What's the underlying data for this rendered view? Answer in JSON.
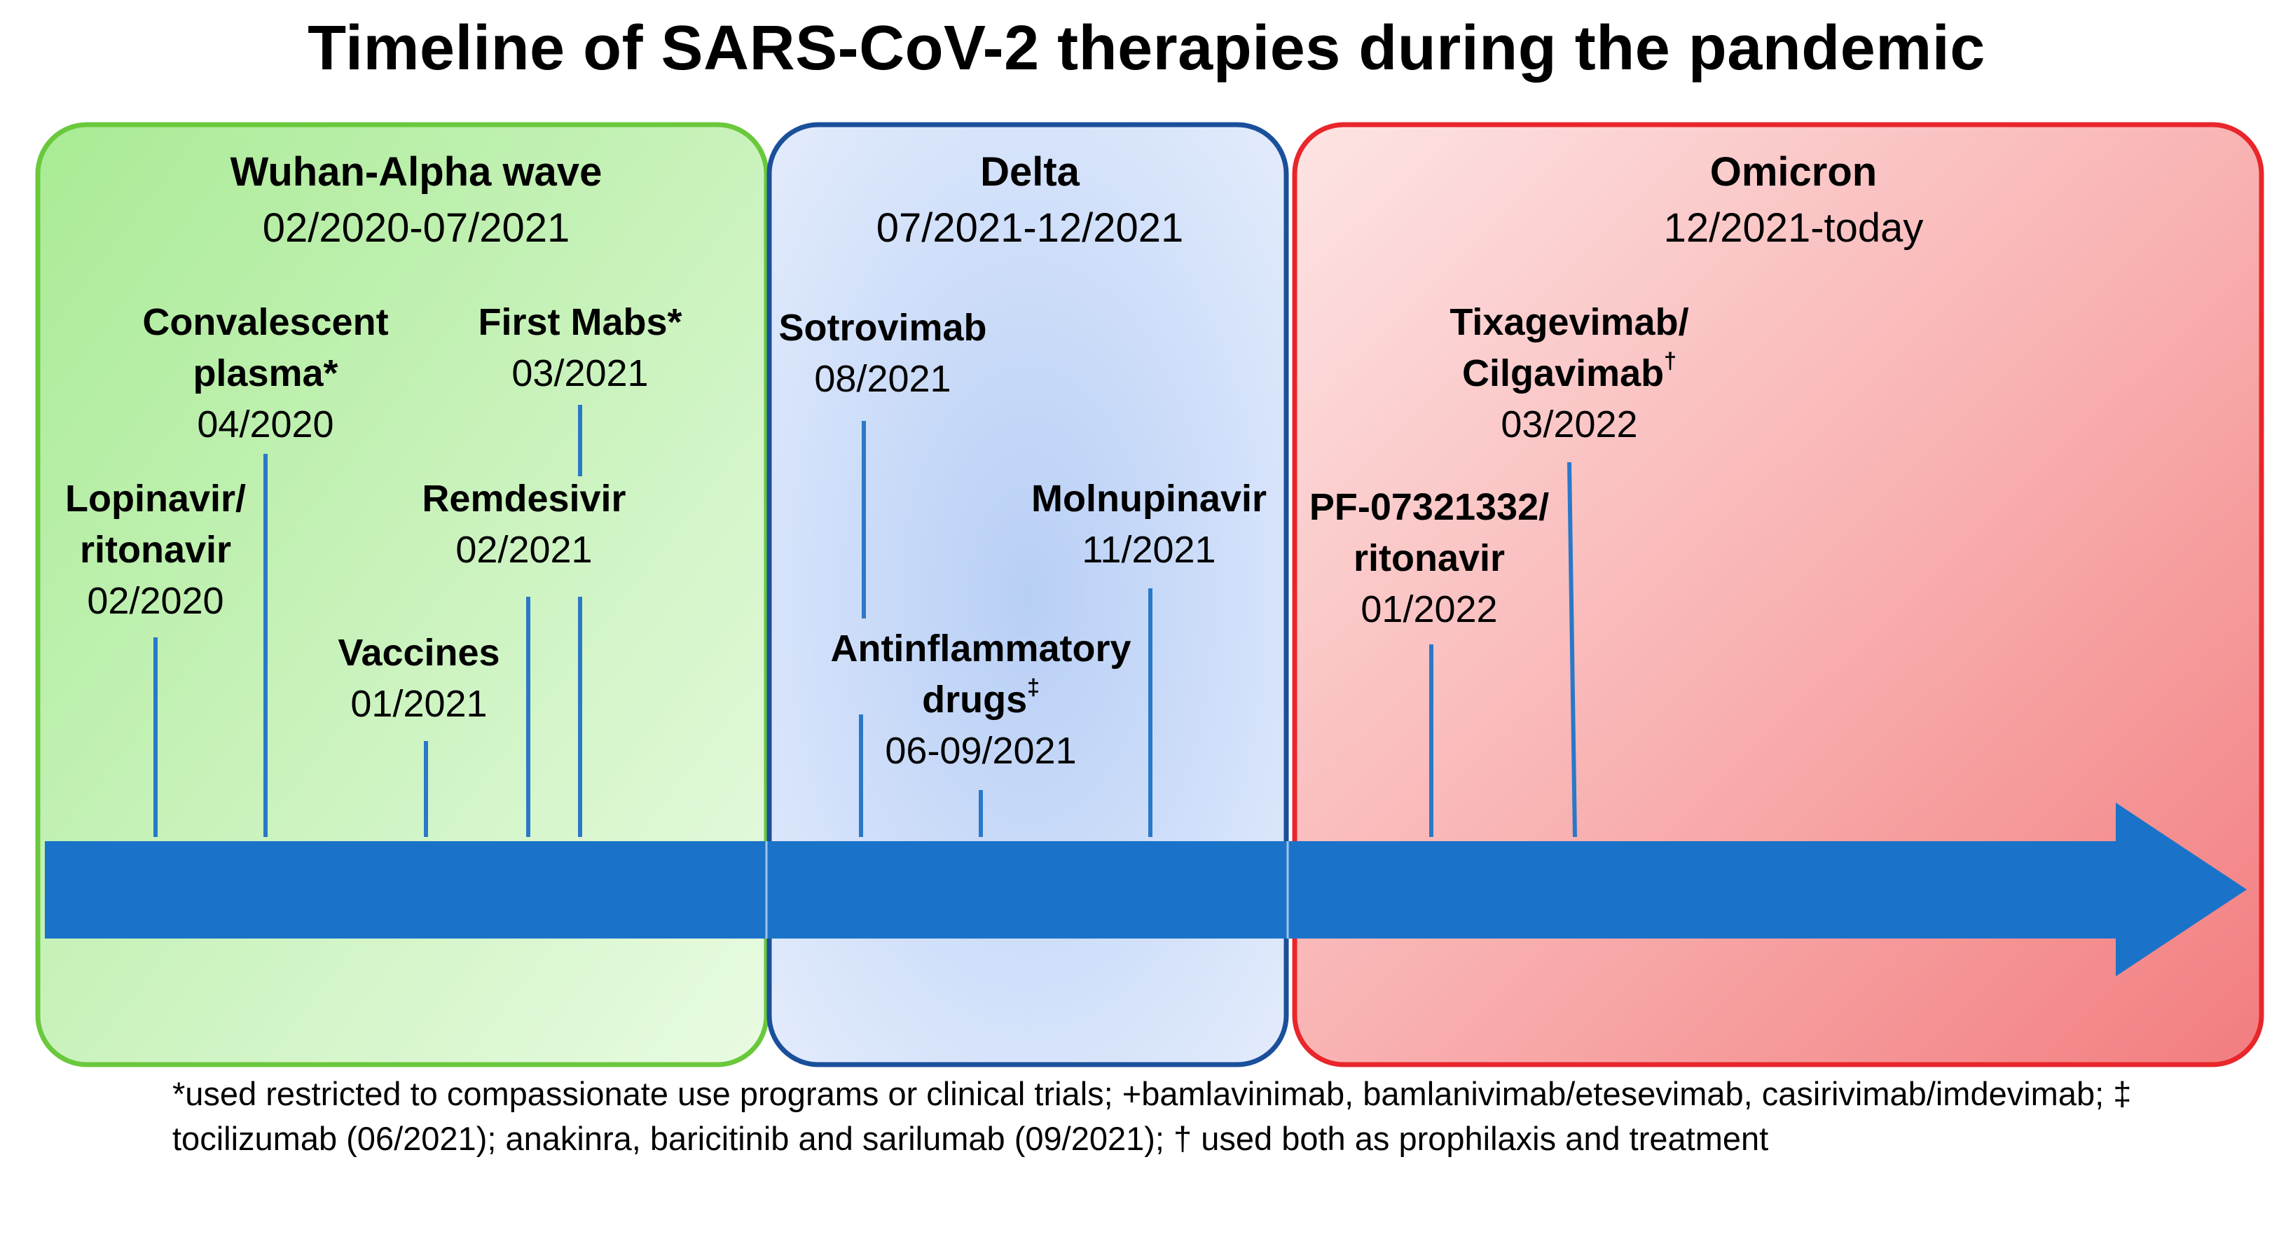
{
  "title": "Timeline of SARS-CoV-2 therapies during the pandemic",
  "colors": {
    "arrow": "#1a73c8",
    "tick": "#2a78c8",
    "green_border": "#6ac83c",
    "blue_border": "#1a4f9a",
    "red_border": "#e8262b"
  },
  "panels": [
    {
      "name": "Wuhan-Alpha wave",
      "range": "02/2020-07/2021"
    },
    {
      "name": "Delta",
      "range": "07/2021-12/2021"
    },
    {
      "name": "Omicron",
      "range": "12/2021-today"
    }
  ],
  "therapies": [
    {
      "name": "Lopinavir/\nritonavir",
      "mark": "",
      "date": "02/2020"
    },
    {
      "name": "Convalescent\nplasma*",
      "mark": "",
      "date": "04/2020"
    },
    {
      "name": "Vaccines",
      "mark": "",
      "date": "01/2021"
    },
    {
      "name": "Remdesivir",
      "mark": "",
      "date": "02/2021"
    },
    {
      "name": "First Mabs*",
      "mark": "",
      "date": "03/2021"
    },
    {
      "name": "Sotrovimab",
      "mark": "",
      "date": "08/2021"
    },
    {
      "name": "Antinflammatory\ndrugs",
      "mark": "‡",
      "date": "06-09/2021"
    },
    {
      "name": "Molnupinavir",
      "mark": "",
      "date": "11/2021"
    },
    {
      "name": "PF-07321332/\nritonavir",
      "mark": "",
      "date": "01/2022"
    },
    {
      "name": "Tixagevimab/\nCilgavimab",
      "mark": "†",
      "date": "03/2022"
    }
  ],
  "footnote": {
    "text": "*used restricted to compassionate use programs or clinical trials; +bamlavinimab, bamlanivimab/etesevimab, casirivimab/imdevimab; ‡ tocilizumab (06/2021); anakinra, baricitinib and sarilumab (09/2021);  † used both as prophilaxis and treatment"
  }
}
